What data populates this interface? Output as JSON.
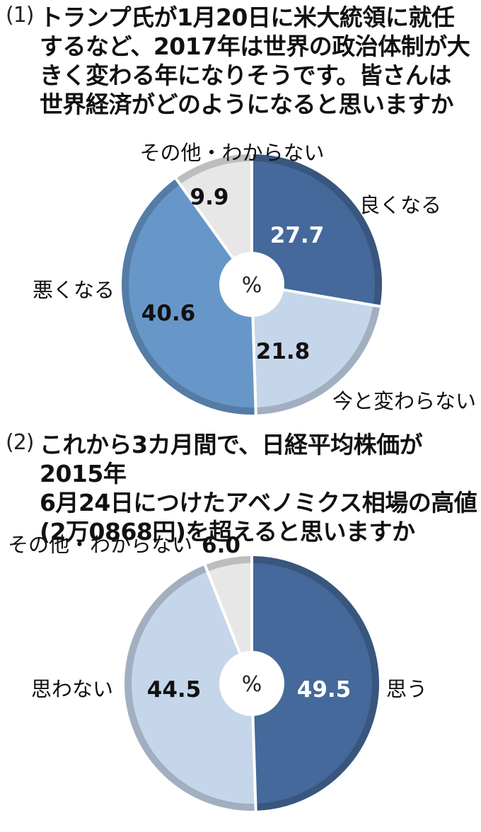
{
  "q1": {
    "number": "(1)",
    "lines": [
      "トランプ氏が1月20日に米大統領に就任",
      "するなど、2017年は世界の政治体制が大",
      "きく変わる年になりそうです。皆さんは",
      "世界経済がどのようになると思いますか"
    ]
  },
  "q2": {
    "number": "(2)",
    "lines": [
      "これから3カ月間で、日経平均株価が2015年",
      "6月24日につけたアベノミクス相場の高値",
      "(2万0868円)を超えると思いますか"
    ]
  },
  "chart_data": [
    {
      "type": "pie",
      "center_label": "%",
      "labels": [
        "良くなる",
        "今と変わらない",
        "悪くなる",
        "その他・わからない"
      ],
      "values": [
        27.7,
        21.8,
        40.6,
        9.9
      ],
      "value_labels": [
        "27.7",
        "21.8",
        "40.6",
        "9.9"
      ],
      "colors": [
        "#44699a",
        "#c5d6ea",
        "#6797c9",
        "#e7e7e7"
      ],
      "value_colors": [
        "#ffffff",
        "#111111",
        "#111111",
        "#111111"
      ],
      "direction": "clockwise from 12 o'clock"
    },
    {
      "type": "pie",
      "center_label": "%",
      "labels": [
        "思う",
        "思わない",
        "その他・わからない"
      ],
      "values": [
        49.5,
        44.5,
        6.0
      ],
      "value_labels": [
        "49.5",
        "44.5",
        "6.0"
      ],
      "colors": [
        "#44699a",
        "#c5d6ea",
        "#e7e7e7"
      ],
      "value_colors": [
        "#ffffff",
        "#111111",
        "#111111"
      ],
      "direction": "clockwise from 12 o'clock"
    }
  ]
}
